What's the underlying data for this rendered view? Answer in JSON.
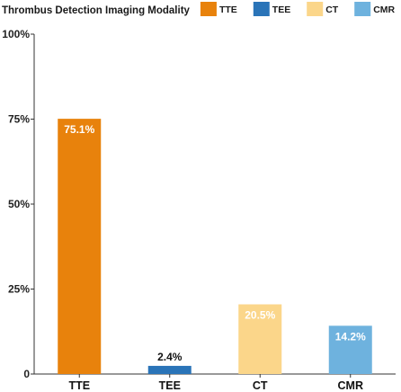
{
  "chart_data": {
    "type": "bar",
    "legend_title": "Thrombus Detection Imaging Modality",
    "legend_position": "top",
    "categories": [
      "TTE",
      "TEE",
      "CT",
      "CMR"
    ],
    "values": [
      75.1,
      2.4,
      20.5,
      14.2
    ],
    "value_labels": [
      "75.1%",
      "2.4%",
      "20.5%",
      "14.2%"
    ],
    "colors": [
      "#E8820C",
      "#2A74B8",
      "#FBD68A",
      "#6EB2DE"
    ],
    "ylim": [
      0,
      100
    ],
    "yticks": [
      0,
      25,
      50,
      75,
      100
    ],
    "ytick_labels": [
      "0",
      "25%",
      "50%",
      "75%",
      "100%"
    ],
    "grid": false
  }
}
